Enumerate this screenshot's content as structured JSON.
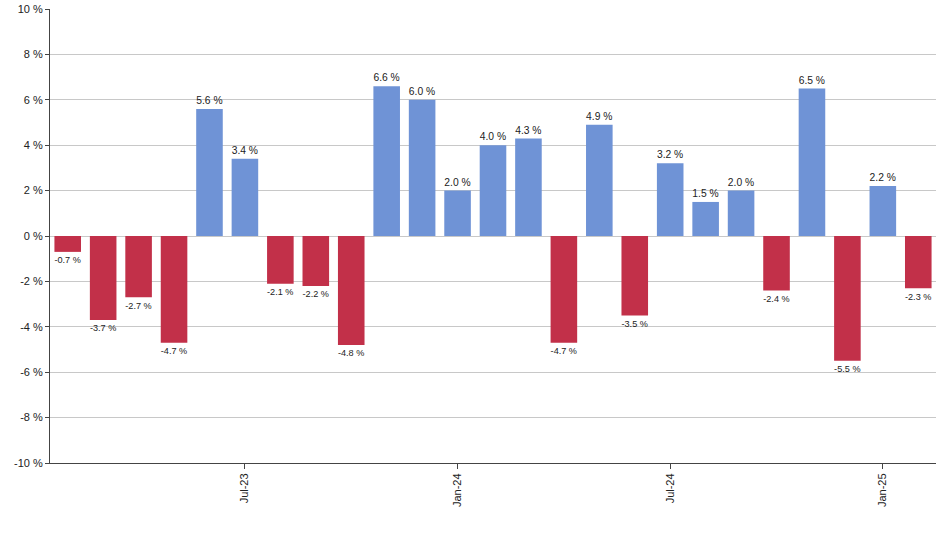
{
  "chart_data": {
    "type": "bar",
    "categories": [
      null,
      null,
      null,
      null,
      null,
      "Jul-23",
      null,
      null,
      null,
      null,
      null,
      "Jan-24",
      null,
      null,
      null,
      null,
      null,
      "Jul-24",
      null,
      null,
      null,
      null,
      null,
      "Jan-25",
      null
    ],
    "values": [
      -0.7,
      -3.7,
      -2.7,
      -4.7,
      5.6,
      3.4,
      -2.1,
      -2.2,
      -4.8,
      6.6,
      6.0,
      2.0,
      4.0,
      4.3,
      -4.7,
      4.9,
      -3.5,
      3.2,
      1.5,
      2.0,
      -2.4,
      6.5,
      -5.5,
      2.2,
      -2.3
    ],
    "value_labels": [
      "-0.7 %",
      "-3.7 %",
      "-2.7 %",
      "-4.7 %",
      "5.6 %",
      "3.4 %",
      "-2.1 %",
      "-2.2 %",
      "-4.8 %",
      "6.6 %",
      "6.0 %",
      "2.0 %",
      "4.0 %",
      "4.3 %",
      "-4.7 %",
      "4.9 %",
      "-3.5 %",
      "3.2 %",
      "1.5 %",
      "2.0 %",
      "-2.4 %",
      "6.5 %",
      "-5.5 %",
      "2.2 %",
      "-2.3 %"
    ],
    "colors": [
      "#c23049",
      "#c23049",
      "#c23049",
      "#c23049",
      "#6f93d6",
      "#6f93d6",
      "#c23049",
      "#c23049",
      "#c23049",
      "#6f93d6",
      "#6f93d6",
      "#6f93d6",
      "#6f93d6",
      "#6f93d6",
      "#c23049",
      "#6f93d6",
      "#c23049",
      "#6f93d6",
      "#6f93d6",
      "#6f93d6",
      "#c23049",
      "#6f93d6",
      "#c23049",
      "#6f93d6",
      "#c23049"
    ],
    "ylim": [
      -10,
      10
    ],
    "yticks": [
      {
        "value": -10,
        "label": "-10 %"
      },
      {
        "value": -8,
        "label": "-8 %"
      },
      {
        "value": -6,
        "label": "-6 %"
      },
      {
        "value": -4,
        "label": "-4 %"
      },
      {
        "value": -2,
        "label": "-2 %"
      },
      {
        "value": 0,
        "label": "0 %"
      },
      {
        "value": 2,
        "label": "2 %"
      },
      {
        "value": 4,
        "label": "4 %"
      },
      {
        "value": 6,
        "label": "6 %"
      },
      {
        "value": 8,
        "label": "8 %"
      },
      {
        "value": 10,
        "label": "10 %"
      }
    ],
    "grid": true,
    "data_labels": true
  }
}
